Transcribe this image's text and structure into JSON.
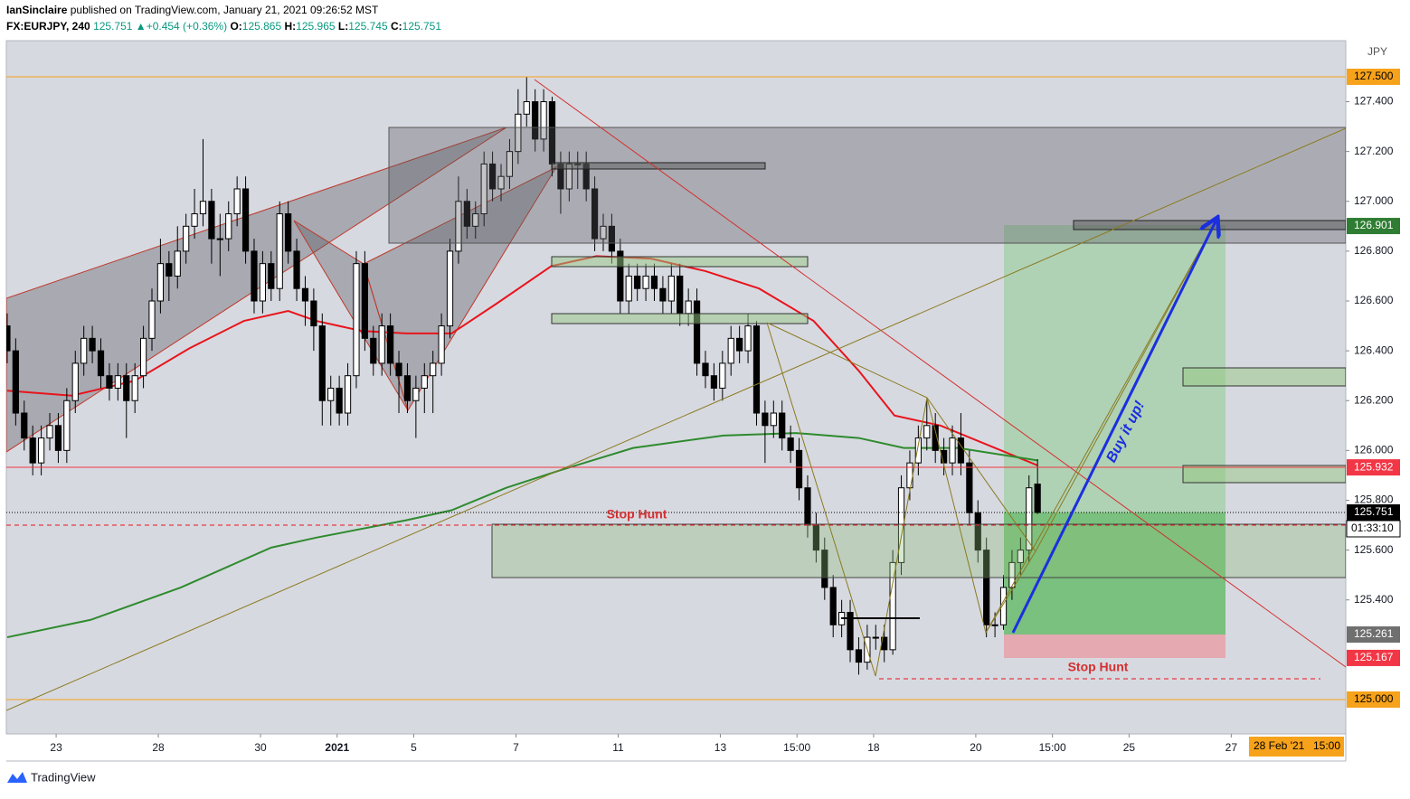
{
  "header": {
    "publisher": "IanSinclaire",
    "published": "published on TradingView.com, January 21, 2021 09:26:52 MST",
    "symbol": "FX:EURJPY, 240",
    "last": "125.751",
    "change": "+0.454 (+0.36%)",
    "o_label": "O:",
    "o": "125.865",
    "h_label": "H:",
    "h": "125.965",
    "l_label": "L:",
    "l": "125.745",
    "c_label": "C:",
    "c": "125.751"
  },
  "chart_data": {
    "type": "candlestick",
    "currency": "JPY",
    "up_color": "#ffffff",
    "down_color": "#000000",
    "border_color": "#000000",
    "xlim": [
      -0.1,
      157.2
    ],
    "ylim": [
      124.862,
      127.645
    ],
    "xticks": [
      {
        "value": 5.75,
        "label": "23"
      },
      {
        "value": 17.75,
        "label": "28"
      },
      {
        "value": 29.75,
        "label": "30"
      },
      {
        "value": 38.75,
        "label": "2021"
      },
      {
        "value": 47.75,
        "label": "5"
      },
      {
        "value": 59.75,
        "label": "7"
      },
      {
        "value": 71.75,
        "label": "11"
      },
      {
        "value": 83.75,
        "label": "13"
      },
      {
        "value": 92.75,
        "label": "15:00"
      },
      {
        "value": 101.75,
        "label": "18"
      },
      {
        "value": 113.75,
        "label": "20"
      },
      {
        "value": 122.75,
        "label": "15:00"
      },
      {
        "value": 131.75,
        "label": "25"
      },
      {
        "value": 143.75,
        "label": "27"
      }
    ],
    "yticks": [
      {
        "value": 125.4,
        "label": "125.400"
      },
      {
        "value": 125.6,
        "label": "125.600"
      },
      {
        "value": 125.8,
        "label": "125.800"
      },
      {
        "value": 126.0,
        "label": "126.000"
      },
      {
        "value": 126.2,
        "label": "126.200"
      },
      {
        "value": 126.4,
        "label": "126.400"
      },
      {
        "value": 126.6,
        "label": "126.600"
      },
      {
        "value": 126.8,
        "label": "126.800"
      },
      {
        "value": 127.0,
        "label": "127.000"
      },
      {
        "value": 127.2,
        "label": "127.200"
      },
      {
        "value": 127.4,
        "label": "127.400"
      }
    ],
    "price_labels": [
      {
        "value": 127.5,
        "label": "127.500",
        "color": "#f7a21b",
        "text_color": "#000000"
      },
      {
        "value": 126.901,
        "label": "126.901",
        "color": "#2e7d32",
        "text_color": "#ffffff"
      },
      {
        "value": 125.932,
        "label": "125.932",
        "color": "#f23645",
        "text_color": "#ffffff"
      },
      {
        "value": 125.751,
        "label": "125.751",
        "color": "#000000",
        "text_color": "#ffffff"
      },
      {
        "value": 125.261,
        "label": "125.261",
        "color": "#6f6f6f",
        "text_color": "#ffffff"
      },
      {
        "value": 125.167,
        "label": "125.167",
        "color": "#f23645",
        "text_color": "#ffffff"
      },
      {
        "value": 125.0,
        "label": "125.000",
        "color": "#f7a21b",
        "text_color": "#000000"
      }
    ],
    "countdown": "01:33:10",
    "cursor_date": "28 Feb '21",
    "cursor_time": "15:00",
    "annotations": {
      "stop_hunt_1": "Stop Hunt",
      "stop_hunt_2": "Stop Hunt",
      "buy": "Buy it up!"
    },
    "series": [
      {
        "color": "#e8141c",
        "x": [
          0,
          7.6,
          15,
          21.4,
          27.8,
          33,
          36.3,
          41.6,
          46.9,
          52.2,
          57.5,
          63.9,
          69.2,
          75.6,
          82,
          88.3,
          94.7,
          100,
          104.2,
          109.6,
          116,
          121
        ],
        "values": [
          126.24,
          126.22,
          126.28,
          126.41,
          126.52,
          126.56,
          126.52,
          126.48,
          126.47,
          126.47,
          126.59,
          126.74,
          126.78,
          126.77,
          126.72,
          126.65,
          126.52,
          126.32,
          126.14,
          126.1,
          126.01,
          125.94
        ]
      },
      {
        "color": "#2e8b2e",
        "x": [
          0,
          9.8,
          20.4,
          31,
          36.3,
          46.9,
          52.2,
          58.6,
          64.9,
          73.5,
          84.1,
          92.6,
          100,
          105.3,
          111.7,
          121
        ],
        "values": [
          125.25,
          125.32,
          125.45,
          125.61,
          125.65,
          125.72,
          125.76,
          125.85,
          125.92,
          126.01,
          126.06,
          126.07,
          126.05,
          126.01,
          126.01,
          125.96
        ]
      }
    ],
    "candles": [
      [
        126.5,
        126.55,
        126.35,
        126.4
      ],
      [
        126.4,
        126.45,
        126.1,
        126.15
      ],
      [
        126.15,
        126.2,
        126.0,
        126.05
      ],
      [
        126.05,
        126.1,
        125.9,
        125.95
      ],
      [
        125.95,
        126.1,
        125.9,
        126.05
      ],
      [
        126.05,
        126.15,
        126.0,
        126.1
      ],
      [
        126.1,
        126.15,
        125.95,
        126.0
      ],
      [
        126.0,
        126.25,
        125.95,
        126.2
      ],
      [
        126.2,
        126.4,
        126.15,
        126.35
      ],
      [
        126.35,
        126.5,
        126.3,
        126.45
      ],
      [
        126.45,
        126.5,
        126.35,
        126.4
      ],
      [
        126.4,
        126.45,
        126.25,
        126.3
      ],
      [
        126.3,
        126.35,
        126.2,
        126.25
      ],
      [
        126.25,
        126.35,
        126.2,
        126.3
      ],
      [
        126.3,
        126.35,
        126.05,
        126.2
      ],
      [
        126.2,
        126.35,
        126.15,
        126.3
      ],
      [
        126.3,
        126.5,
        126.25,
        126.45
      ],
      [
        126.45,
        126.65,
        126.4,
        126.6
      ],
      [
        126.6,
        126.85,
        126.55,
        126.75
      ],
      [
        126.75,
        126.8,
        126.6,
        126.7
      ],
      [
        126.7,
        126.9,
        126.65,
        126.8
      ],
      [
        126.8,
        126.95,
        126.75,
        126.9
      ],
      [
        126.9,
        127.05,
        126.85,
        126.95
      ],
      [
        126.95,
        127.25,
        126.9,
        127.0
      ],
      [
        127.0,
        127.05,
        126.75,
        126.85
      ],
      [
        126.85,
        126.95,
        126.7,
        126.85
      ],
      [
        126.85,
        127.0,
        126.8,
        126.95
      ],
      [
        126.95,
        127.1,
        126.9,
        127.05
      ],
      [
        127.05,
        127.1,
        126.75,
        126.8
      ],
      [
        126.8,
        126.85,
        126.55,
        126.6
      ],
      [
        126.6,
        126.8,
        126.55,
        126.75
      ],
      [
        126.75,
        126.8,
        126.6,
        126.65
      ],
      [
        126.65,
        127.0,
        126.6,
        126.95
      ],
      [
        126.95,
        127.0,
        126.75,
        126.8
      ],
      [
        126.8,
        126.85,
        126.6,
        126.65
      ],
      [
        126.65,
        126.7,
        126.5,
        126.6
      ],
      [
        126.6,
        126.65,
        126.4,
        126.5
      ],
      [
        126.5,
        126.55,
        126.1,
        126.2
      ],
      [
        126.2,
        126.3,
        126.1,
        126.25
      ],
      [
        126.25,
        126.3,
        126.1,
        126.15
      ],
      [
        126.15,
        126.35,
        126.1,
        126.3
      ],
      [
        126.3,
        126.8,
        126.25,
        126.75
      ],
      [
        126.75,
        126.8,
        126.4,
        126.45
      ],
      [
        126.45,
        126.5,
        126.3,
        126.35
      ],
      [
        126.35,
        126.55,
        126.3,
        126.5
      ],
      [
        126.5,
        126.55,
        126.3,
        126.35
      ],
      [
        126.35,
        126.4,
        126.15,
        126.3
      ],
      [
        126.3,
        126.35,
        126.15,
        126.2
      ],
      [
        126.2,
        126.3,
        126.05,
        126.25
      ],
      [
        126.25,
        126.35,
        126.15,
        126.3
      ],
      [
        126.3,
        126.4,
        126.15,
        126.35
      ],
      [
        126.35,
        126.55,
        126.3,
        126.5
      ],
      [
        126.5,
        126.85,
        126.45,
        126.8
      ],
      [
        126.8,
        127.1,
        126.75,
        127.0
      ],
      [
        127.0,
        127.05,
        126.85,
        126.9
      ],
      [
        126.9,
        127.0,
        126.85,
        126.95
      ],
      [
        126.95,
        127.2,
        126.9,
        127.15
      ],
      [
        127.15,
        127.2,
        127.0,
        127.05
      ],
      [
        127.05,
        127.15,
        127.0,
        127.1
      ],
      [
        127.1,
        127.25,
        127.05,
        127.2
      ],
      [
        127.2,
        127.45,
        127.15,
        127.35
      ],
      [
        127.35,
        127.5,
        127.3,
        127.4
      ],
      [
        127.4,
        127.45,
        127.2,
        127.25
      ],
      [
        127.25,
        127.45,
        127.2,
        127.4
      ],
      [
        127.4,
        127.42,
        127.1,
        127.15
      ],
      [
        127.15,
        127.2,
        126.95,
        127.05
      ],
      [
        127.05,
        127.2,
        127.0,
        127.15
      ],
      [
        127.15,
        127.2,
        127.05,
        127.15
      ],
      [
        127.15,
        127.2,
        127.0,
        127.05
      ],
      [
        127.05,
        127.1,
        126.8,
        126.85
      ],
      [
        126.85,
        126.95,
        126.8,
        126.9
      ],
      [
        126.9,
        126.95,
        126.75,
        126.8
      ],
      [
        126.8,
        126.85,
        126.55,
        126.6
      ],
      [
        126.6,
        126.75,
        126.55,
        126.7
      ],
      [
        126.7,
        126.75,
        126.6,
        126.65
      ],
      [
        126.65,
        126.75,
        126.6,
        126.7
      ],
      [
        126.7,
        126.75,
        126.6,
        126.65
      ],
      [
        126.65,
        126.7,
        126.55,
        126.6
      ],
      [
        126.6,
        126.75,
        126.55,
        126.7
      ],
      [
        126.7,
        126.75,
        126.5,
        126.55
      ],
      [
        126.55,
        126.65,
        126.5,
        126.6
      ],
      [
        126.6,
        126.65,
        126.3,
        126.35
      ],
      [
        126.35,
        126.4,
        126.25,
        126.3
      ],
      [
        126.3,
        126.35,
        126.2,
        126.25
      ],
      [
        126.25,
        126.4,
        126.2,
        126.35
      ],
      [
        126.35,
        126.5,
        126.3,
        126.45
      ],
      [
        126.45,
        126.5,
        126.35,
        126.4
      ],
      [
        126.4,
        126.55,
        126.35,
        126.5
      ],
      [
        126.5,
        126.52,
        126.1,
        126.15
      ],
      [
        126.15,
        126.2,
        125.95,
        126.1
      ],
      [
        126.1,
        126.2,
        126.05,
        126.15
      ],
      [
        126.15,
        126.2,
        126.0,
        126.05
      ],
      [
        126.05,
        126.1,
        125.95,
        126.0
      ],
      [
        126.0,
        126.05,
        125.8,
        125.85
      ],
      [
        125.85,
        125.9,
        125.65,
        125.7
      ],
      [
        125.7,
        125.75,
        125.55,
        125.6
      ],
      [
        125.6,
        125.65,
        125.4,
        125.45
      ],
      [
        125.45,
        125.5,
        125.25,
        125.3
      ],
      [
        125.3,
        125.4,
        125.25,
        125.35
      ],
      [
        125.35,
        125.4,
        125.15,
        125.2
      ],
      [
        125.2,
        125.25,
        125.1,
        125.15
      ],
      [
        125.15,
        125.3,
        125.12,
        125.25
      ],
      [
        125.25,
        125.3,
        125.2,
        125.25
      ],
      [
        125.25,
        125.3,
        125.15,
        125.2
      ],
      [
        125.2,
        125.6,
        125.18,
        125.55
      ],
      [
        125.55,
        125.9,
        125.5,
        125.85
      ],
      [
        125.85,
        126.0,
        125.8,
        125.95
      ],
      [
        125.95,
        126.1,
        125.9,
        126.05
      ],
      [
        126.05,
        126.2,
        126.0,
        126.1
      ],
      [
        126.1,
        126.15,
        125.95,
        126.0
      ],
      [
        126.0,
        126.05,
        125.9,
        125.95
      ],
      [
        125.95,
        126.1,
        125.9,
        126.05
      ],
      [
        126.05,
        126.15,
        125.9,
        125.95
      ],
      [
        125.95,
        126.0,
        125.7,
        125.75
      ],
      [
        125.75,
        125.8,
        125.55,
        125.6
      ],
      [
        125.6,
        125.65,
        125.25,
        125.3
      ],
      [
        125.3,
        125.35,
        125.25,
        125.3
      ],
      [
        125.3,
        125.5,
        125.28,
        125.45
      ],
      [
        125.45,
        125.6,
        125.4,
        125.55
      ],
      [
        125.55,
        125.65,
        125.5,
        125.6
      ],
      [
        125.6,
        125.9,
        125.55,
        125.85
      ],
      [
        125.865,
        125.965,
        125.745,
        125.751
      ]
    ]
  },
  "brand": "TradingView"
}
